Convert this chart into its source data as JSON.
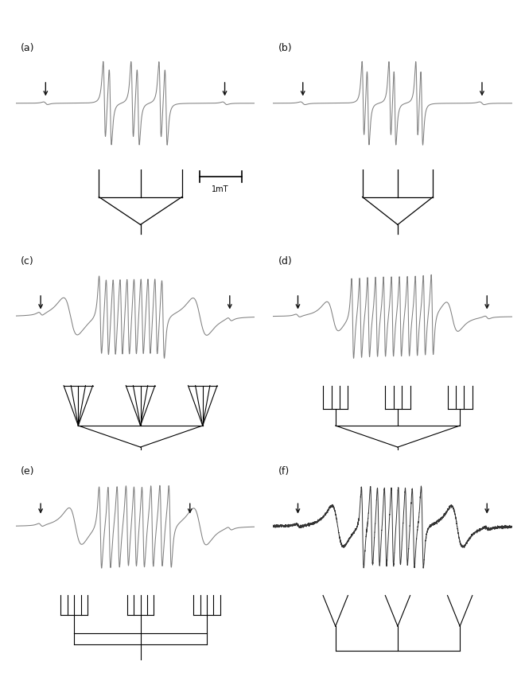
{
  "figure_size": [
    6.6,
    8.51
  ],
  "dpi": 100,
  "background_color": "#ffffff",
  "line_color": "#808080",
  "arrow_color": "#111111",
  "label_color": "#111111",
  "panel_titles": [
    "(a)",
    "(b)",
    "(c)",
    "(d)",
    "(e)",
    "(f)"
  ],
  "scale_bar_label": "1mT",
  "panel_label_fontsize": 9
}
